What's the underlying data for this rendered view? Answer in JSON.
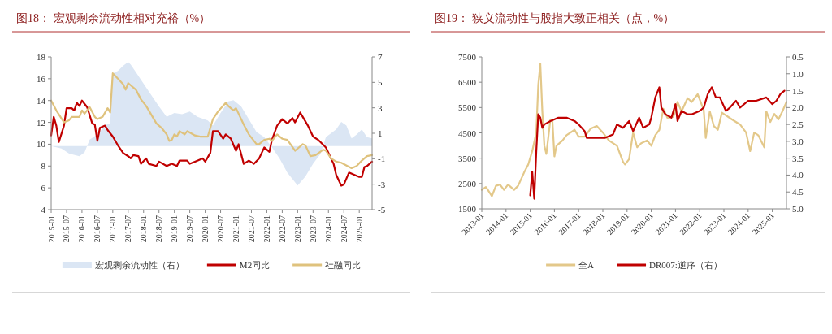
{
  "chart_data": [
    {
      "type": "line",
      "title": "图18：  宏观剩余流动性相对充裕（%）",
      "xlim": [
        "2015-01",
        "2025-06"
      ],
      "xticks": [
        "2015-01",
        "2015-07",
        "2016-01",
        "2016-07",
        "2017-01",
        "2017-07",
        "2018-01",
        "2018-07",
        "2019-01",
        "2019-07",
        "2020-01",
        "2020-07",
        "2021-01",
        "2021-07",
        "2022-01",
        "2022-07",
        "2023-01",
        "2023-07",
        "2024-01",
        "2024-07",
        "2025-01"
      ],
      "ylim": [
        4,
        18
      ],
      "yticks": [
        4,
        6,
        8,
        10,
        12,
        14,
        16,
        18
      ],
      "y2lim": [
        -5,
        7
      ],
      "y2ticks": [
        -5,
        -3,
        -1,
        1,
        3,
        5,
        7
      ],
      "legend": "bottom",
      "series": [
        {
          "name": "宏观剩余流动性（右）",
          "type": "area",
          "axis": "y2",
          "color": "#dbe6f4",
          "x": [
            "2015-01",
            "2015-05",
            "2015-08",
            "2015-12",
            "2016-02",
            "2016-04",
            "2016-07",
            "2016-10",
            "2016-12",
            "2017-01",
            "2017-03",
            "2017-05",
            "2017-07",
            "2017-08",
            "2017-10",
            "2017-12",
            "2018-04",
            "2018-07",
            "2018-10",
            "2019-01",
            "2019-04",
            "2019-07",
            "2019-10",
            "2020-02",
            "2020-04",
            "2020-07",
            "2020-10",
            "2020-12",
            "2021-03",
            "2021-06",
            "2021-09",
            "2021-12",
            "2022-03",
            "2022-06",
            "2022-09",
            "2023-01",
            "2023-04",
            "2023-07",
            "2023-10",
            "2023-12",
            "2024-04",
            "2024-06",
            "2024-08",
            "2024-10",
            "2024-12",
            "2025-02",
            "2025-04",
            "2025-06"
          ],
          "values": [
            0,
            -0.2,
            -0.6,
            -0.8,
            -0.5,
            0.5,
            0.9,
            1.6,
            1.8,
            5.7,
            5.9,
            6.3,
            6.6,
            6.4,
            5.8,
            5.2,
            4.0,
            3.1,
            2.3,
            2.6,
            2.5,
            2.7,
            2.3,
            2.0,
            1.6,
            2.6,
            3.5,
            3.6,
            3.1,
            2.1,
            1.1,
            0.7,
            -0.1,
            -1.0,
            -2.1,
            -3.1,
            -2.4,
            -1.4,
            -0.6,
            0.7,
            1.3,
            1.9,
            1.6,
            0.6,
            0.9,
            1.3,
            0.7,
            0.6
          ]
        },
        {
          "name": "M2同比",
          "type": "line",
          "color": "#c00000",
          "x": [
            "2015-01",
            "2015-02",
            "2015-03",
            "2015-04",
            "2015-06",
            "2015-07",
            "2015-09",
            "2015-10",
            "2015-11",
            "2015-12",
            "2016-01",
            "2016-03",
            "2016-05",
            "2016-06",
            "2016-07",
            "2016-08",
            "2016-10",
            "2016-11",
            "2017-01",
            "2017-03",
            "2017-05",
            "2017-07",
            "2017-08",
            "2017-09",
            "2017-11",
            "2017-12",
            "2018-02",
            "2018-03",
            "2018-06",
            "2018-07",
            "2018-10",
            "2018-12",
            "2019-02",
            "2019-03",
            "2019-06",
            "2019-07",
            "2019-09",
            "2019-12",
            "2020-01",
            "2020-03",
            "2020-04",
            "2020-06",
            "2020-08",
            "2020-09",
            "2020-11",
            "2021-01",
            "2021-02",
            "2021-04",
            "2021-06",
            "2021-08",
            "2021-10",
            "2021-12",
            "2022-02",
            "2022-03",
            "2022-05",
            "2022-07",
            "2022-09",
            "2022-11",
            "2022-12",
            "2023-02",
            "2023-03",
            "2023-05",
            "2023-07",
            "2023-09",
            "2023-12",
            "2024-02",
            "2024-03",
            "2024-04",
            "2024-06",
            "2024-07",
            "2024-09",
            "2024-11",
            "2025-01",
            "2025-02",
            "2025-03",
            "2025-04",
            "2025-06"
          ],
          "values": [
            10.8,
            12.5,
            11.7,
            10.2,
            11.7,
            13.3,
            13.3,
            13.1,
            13.8,
            13.5,
            14.0,
            13.4,
            11.9,
            11.8,
            10.3,
            11.5,
            11.7,
            11.3,
            10.7,
            9.9,
            9.2,
            8.9,
            8.7,
            9.0,
            8.9,
            8.2,
            8.7,
            8.2,
            8.0,
            8.4,
            8.0,
            8.2,
            8.0,
            8.5,
            8.5,
            8.2,
            8.4,
            8.7,
            8.4,
            9.2,
            11.2,
            11.2,
            10.5,
            10.9,
            10.5,
            9.4,
            10.0,
            8.2,
            8.5,
            8.2,
            8.7,
            9.7,
            9.3,
            10.4,
            11.7,
            12.3,
            11.9,
            12.4,
            12.0,
            12.9,
            12.5,
            11.7,
            10.7,
            10.4,
            9.7,
            8.7,
            8.2,
            7.2,
            6.2,
            6.3,
            7.4,
            7.2,
            7.0,
            7.0,
            7.9,
            8.0,
            8.4
          ]
        },
        {
          "name": "社融同比",
          "type": "line",
          "color": "#dfc27d",
          "x": [
            "2015-01",
            "2015-03",
            "2015-06",
            "2015-08",
            "2015-09",
            "2015-12",
            "2016-01",
            "2016-02",
            "2016-04",
            "2016-06",
            "2016-07",
            "2016-09",
            "2016-11",
            "2016-12",
            "2017-01",
            "2017-03",
            "2017-05",
            "2017-06",
            "2017-07",
            "2017-10",
            "2017-12",
            "2018-02",
            "2018-04",
            "2018-06",
            "2018-08",
            "2018-10",
            "2018-11",
            "2018-12",
            "2019-01",
            "2019-02",
            "2019-03",
            "2019-05",
            "2019-06",
            "2019-09",
            "2019-11",
            "2020-02",
            "2020-04",
            "2020-06",
            "2020-09",
            "2020-10",
            "2020-12",
            "2021-01",
            "2021-04",
            "2021-06",
            "2021-09",
            "2021-10",
            "2021-12",
            "2022-02",
            "2022-03",
            "2022-05",
            "2022-07",
            "2022-09",
            "2022-12",
            "2023-03",
            "2023-04",
            "2023-06",
            "2023-08",
            "2023-11",
            "2023-12",
            "2024-02",
            "2024-04",
            "2024-06",
            "2024-10",
            "2024-12",
            "2025-02",
            "2025-04",
            "2025-06"
          ],
          "values": [
            14.0,
            13.1,
            12.0,
            12.2,
            12.5,
            12.5,
            13.1,
            12.8,
            13.4,
            12.5,
            12.3,
            12.5,
            13.3,
            12.9,
            16.5,
            16.0,
            15.5,
            15.0,
            15.6,
            15.0,
            14.1,
            13.5,
            12.7,
            11.9,
            11.5,
            10.9,
            10.3,
            10.4,
            10.9,
            10.7,
            11.2,
            10.9,
            11.2,
            10.8,
            10.7,
            10.7,
            12.3,
            13.0,
            13.8,
            13.5,
            13.1,
            13.3,
            11.8,
            10.9,
            10.0,
            10.0,
            10.4,
            10.5,
            10.3,
            10.9,
            10.5,
            10.4,
            9.4,
            10.0,
            9.9,
            8.9,
            9.0,
            9.5,
            9.4,
            8.7,
            8.4,
            8.3,
            7.8,
            8.0,
            8.5,
            8.9,
            9.0
          ]
        }
      ]
    },
    {
      "type": "line",
      "title": "图19：  狭义流动性与股指大致正相关（点，%）",
      "xlim": [
        "2013-01",
        "2025-08"
      ],
      "xticks": [
        "2013-01",
        "2014-01",
        "2015-01",
        "2016-01",
        "2017-01",
        "2018-01",
        "2019-01",
        "2020-01",
        "2021-01",
        "2022-01",
        "2023-01",
        "2024-01",
        "2025-01"
      ],
      "ylim": [
        1500,
        7500
      ],
      "yticks": [
        1500,
        2500,
        3500,
        4500,
        5500,
        6500,
        7500
      ],
      "y2lim": [
        5.0,
        0.5
      ],
      "y2ticks": [
        {
          "value": 5,
          "label": "5.0"
        },
        {
          "value": 4.5,
          "label": "4.5"
        },
        {
          "value": 4,
          "label": "4.0"
        },
        {
          "value": 3.5,
          "label": "3.5"
        },
        {
          "value": 3,
          "label": "3.0"
        },
        {
          "value": 2.5,
          "label": "2.5"
        },
        {
          "value": 2,
          "label": "2.0"
        },
        {
          "value": 1.5,
          "label": "1.5"
        },
        {
          "value": 1,
          "label": "1.0"
        },
        {
          "value": 0.5,
          "label": "0.5"
        }
      ],
      "legend": "bottom",
      "series": [
        {
          "name": "全A",
          "type": "line",
          "color": "#e3c88a",
          "x": [
            "2013-01",
            "2013-03",
            "2013-04",
            "2013-06",
            "2013-08",
            "2013-10",
            "2013-12",
            "2014-02",
            "2014-05",
            "2014-07",
            "2014-10",
            "2014-12",
            "2015-02",
            "2015-04",
            "2015-05",
            "2015-06",
            "2015-07",
            "2015-08",
            "2015-09",
            "2015-11",
            "2015-12",
            "2016-01",
            "2016-02",
            "2016-05",
            "2016-07",
            "2016-11",
            "2017-01",
            "2017-04",
            "2017-07",
            "2017-10",
            "2018-01",
            "2018-04",
            "2018-08",
            "2018-11",
            "2018-12",
            "2019-02",
            "2019-04",
            "2019-06",
            "2019-08",
            "2019-11",
            "2020-01",
            "2020-03",
            "2020-05",
            "2020-07",
            "2020-09",
            "2020-12",
            "2021-02",
            "2021-04",
            "2021-07",
            "2021-09",
            "2021-12",
            "2022-03",
            "2022-04",
            "2022-06",
            "2022-08",
            "2022-10",
            "2022-12",
            "2023-05",
            "2023-09",
            "2023-12",
            "2024-02",
            "2024-04",
            "2024-06",
            "2024-09",
            "2024-10",
            "2024-12",
            "2025-02",
            "2025-04",
            "2025-06",
            "2025-08"
          ],
          "values": [
            2250,
            2360,
            2250,
            2000,
            2410,
            2460,
            2250,
            2460,
            2250,
            2410,
            2940,
            3250,
            3780,
            4510,
            6400,
            7240,
            5350,
            3990,
            3670,
            5030,
            4980,
            3570,
            3990,
            4200,
            4410,
            4620,
            4350,
            4350,
            4670,
            4770,
            4510,
            4200,
            3990,
            3360,
            3250,
            3460,
            4510,
            3930,
            4090,
            4200,
            3990,
            4410,
            4620,
            5450,
            5090,
            5140,
            5720,
            5350,
            5870,
            5720,
            6030,
            5400,
            4300,
            5350,
            4770,
            4620,
            5300,
            5030,
            4830,
            4510,
            3780,
            4510,
            4410,
            3930,
            5350,
            4930,
            5250,
            5030,
            5350,
            5720
          ]
        },
        {
          "name": "DR007:逆序（右）",
          "type": "line",
          "axis": "y2",
          "color": "#c00000",
          "x": [
            "2015-01",
            "2015-02",
            "2015-03",
            "2015-04",
            "2015-05",
            "2015-06",
            "2015-07",
            "2015-08",
            "2015-11",
            "2016-03",
            "2016-07",
            "2016-11",
            "2017-01",
            "2017-04",
            "2017-05",
            "2017-07",
            "2017-10",
            "2018-02",
            "2018-06",
            "2018-08",
            "2018-11",
            "2019-02",
            "2019-04",
            "2019-07",
            "2019-09",
            "2019-12",
            "2020-01",
            "2020-03",
            "2020-05",
            "2020-06",
            "2020-08",
            "2020-11",
            "2021-01",
            "2021-02",
            "2021-04",
            "2021-07",
            "2021-09",
            "2022-01",
            "2022-03",
            "2022-05",
            "2022-07",
            "2022-09",
            "2022-11",
            "2023-02",
            "2023-04",
            "2023-07",
            "2023-09",
            "2024-01",
            "2024-05",
            "2024-10",
            "2025-01",
            "2025-03",
            "2025-05",
            "2025-07"
          ],
          "values": [
            4.6,
            3.9,
            4.7,
            3.3,
            2.2,
            2.3,
            2.6,
            2.5,
            2.4,
            2.3,
            2.3,
            2.4,
            2.5,
            2.7,
            2.9,
            2.9,
            2.9,
            2.9,
            2.8,
            2.5,
            2.6,
            2.4,
            2.7,
            2.3,
            2.6,
            2.5,
            2.3,
            1.7,
            1.4,
            2.0,
            2.2,
            2.3,
            1.9,
            2.4,
            2.1,
            2.2,
            2.2,
            2.1,
            2.0,
            1.6,
            1.4,
            1.7,
            1.7,
            2.1,
            2.0,
            1.8,
            2.0,
            1.8,
            1.8,
            1.7,
            1.9,
            1.8,
            1.6,
            1.5
          ]
        }
      ]
    }
  ]
}
